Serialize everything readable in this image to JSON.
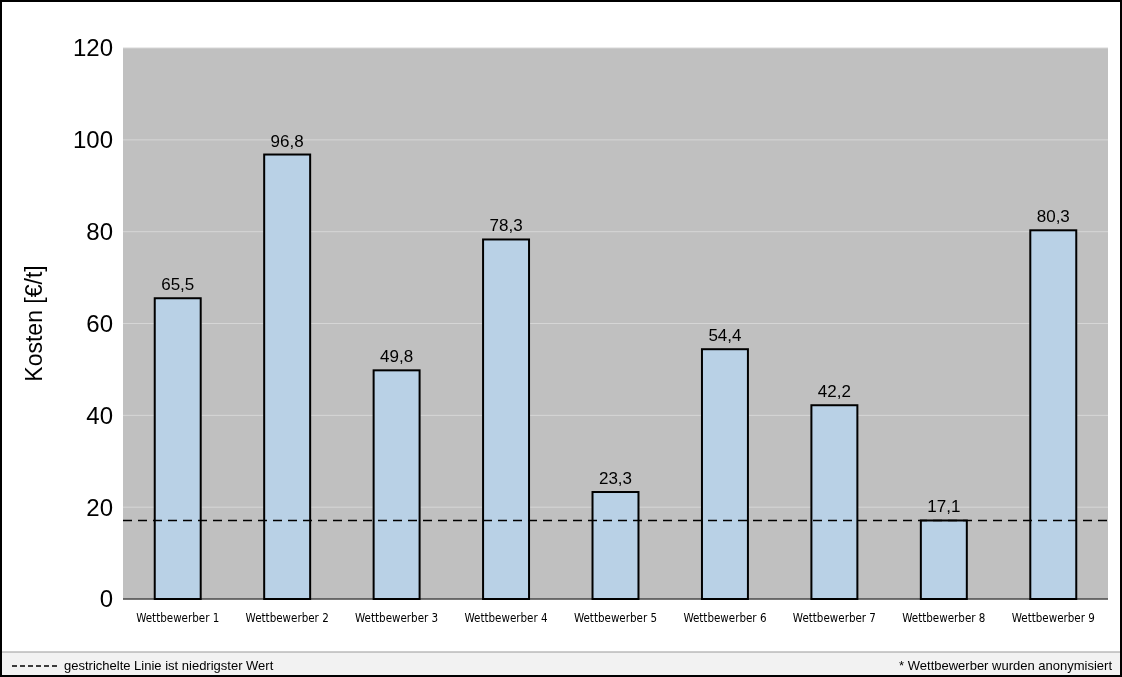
{
  "chart_data": {
    "type": "bar",
    "ylabel": "Kosten [€/t]",
    "categories": [
      "Wettbewerber 1",
      "Wettbewerber 2",
      "Wettbewerber 3",
      "Wettbewerber 4",
      "Wettbewerber 5",
      "Wettbewerber 6",
      "Wettbewerber 7",
      "Wettbewerber 8",
      "Wettbewerber 9"
    ],
    "values": [
      65.5,
      96.8,
      49.8,
      78.3,
      23.3,
      54.4,
      42.2,
      17.1,
      80.3
    ],
    "color": "#b9d1e6",
    "ylim": [
      0,
      120
    ],
    "yticks": [
      0,
      20,
      40,
      60,
      80,
      100,
      120
    ],
    "grid": "y",
    "value_labels": [
      "65,5",
      "96,8",
      "49,8",
      "78,3",
      "23,3",
      "54,4",
      "42,2",
      "17,1",
      "80,3"
    ],
    "ref_lines": [
      {
        "axis": "y",
        "value": 17.1,
        "label": "gestrichelte Linie ist niedrigster Wert",
        "color": "#000000",
        "line_style": "dashed"
      }
    ],
    "annotations": [
      "* Wettbewerber wurden anonymisiert"
    ]
  }
}
